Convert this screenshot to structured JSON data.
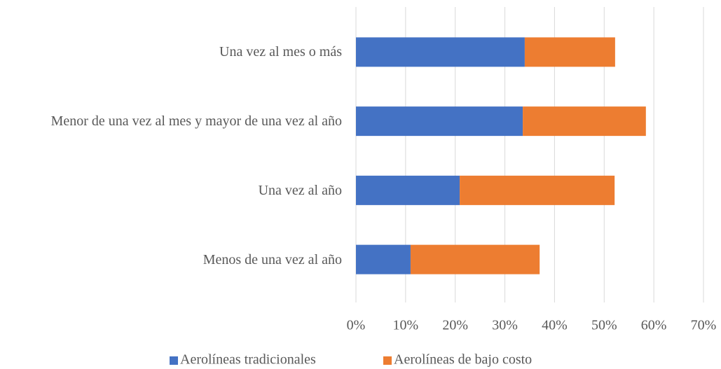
{
  "chart_data": {
    "type": "stacked_barh",
    "categories": [
      "Una vez al mes o más",
      "Menor de una vez al mes y mayor de una vez al año",
      "Una vez al año",
      "Menos de una vez al año"
    ],
    "series": [
      {
        "name": "Aerolíneas tradicionales",
        "color": "#4472c4",
        "values": [
          34.0,
          33.6,
          20.9,
          11.0
        ]
      },
      {
        "name": "Aerolíneas de bajo costo",
        "color": "#ed7d31",
        "values": [
          18.2,
          24.8,
          31.2,
          26.0
        ]
      }
    ],
    "xlim": [
      0,
      70
    ],
    "xticks": [
      {
        "value": 0,
        "label": "0%"
      },
      {
        "value": 10,
        "label": "10%"
      },
      {
        "value": 20,
        "label": "20%"
      },
      {
        "value": 30,
        "label": "30%"
      },
      {
        "value": 40,
        "label": "40%"
      },
      {
        "value": 50,
        "label": "50%"
      },
      {
        "value": 60,
        "label": "60%"
      },
      {
        "value": 70,
        "label": "70%"
      }
    ],
    "grid": true,
    "legend": "bottom"
  }
}
